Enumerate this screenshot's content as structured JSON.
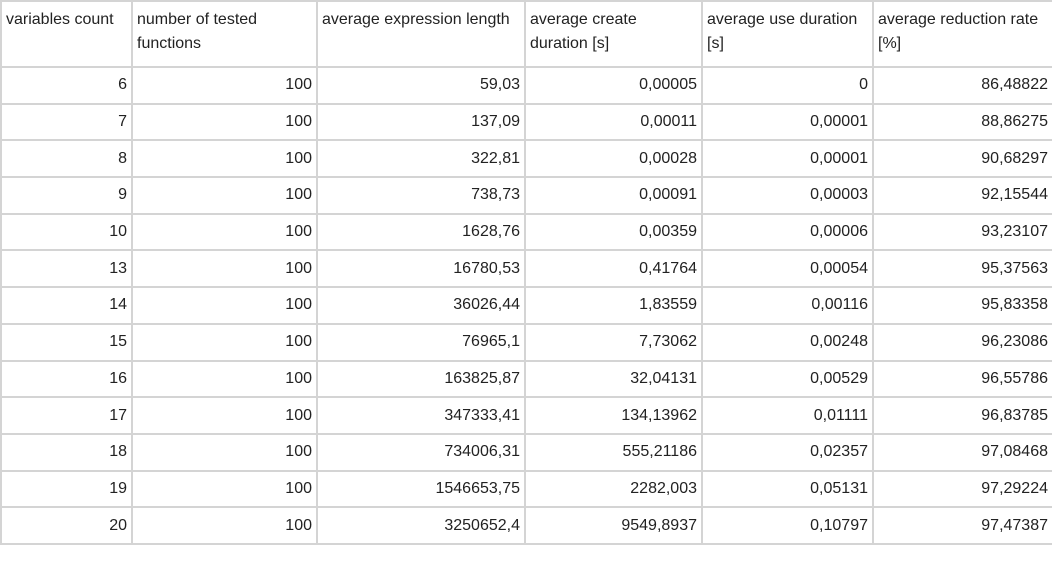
{
  "table": {
    "header": [
      "variables count",
      "number of tested functions",
      "average expression length",
      "average create duration [s]",
      "average use duration [s]",
      "average reduction rate [%]"
    ],
    "rows": [
      [
        "6",
        "100",
        "59,03",
        "0,00005",
        "0",
        "86,48822"
      ],
      [
        "7",
        "100",
        "137,09",
        "0,00011",
        "0,00001",
        "88,86275"
      ],
      [
        "8",
        "100",
        "322,81",
        "0,00028",
        "0,00001",
        "90,68297"
      ],
      [
        "9",
        "100",
        "738,73",
        "0,00091",
        "0,00003",
        "92,15544"
      ],
      [
        "10",
        "100",
        "1628,76",
        "0,00359",
        "0,00006",
        "93,23107"
      ],
      [
        "13",
        "100",
        "16780,53",
        "0,41764",
        "0,00054",
        "95,37563"
      ],
      [
        "14",
        "100",
        "36026,44",
        "1,83559",
        "0,00116",
        "95,83358"
      ],
      [
        "15",
        "100",
        "76965,1",
        "7,73062",
        "0,00248",
        "96,23086"
      ],
      [
        "16",
        "100",
        "163825,87",
        "32,04131",
        "0,00529",
        "96,55786"
      ],
      [
        "17",
        "100",
        "347333,41",
        "134,13962",
        "0,01111",
        "96,83785"
      ],
      [
        "18",
        "100",
        "734006,31",
        "555,21186",
        "0,02357",
        "97,08468"
      ],
      [
        "19",
        "100",
        "1546653,75",
        "2282,003",
        "0,05131",
        "97,29224"
      ],
      [
        "20",
        "100",
        "3250652,4",
        "9549,8937",
        "0,10797",
        "97,47387"
      ]
    ]
  }
}
